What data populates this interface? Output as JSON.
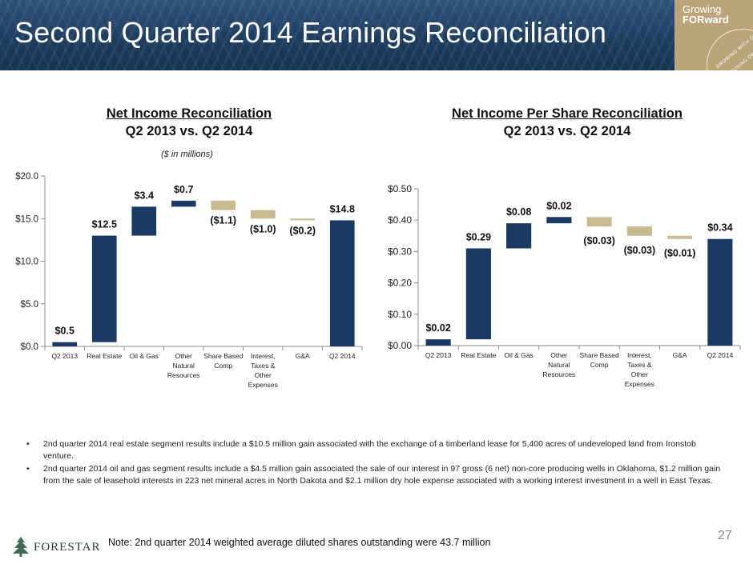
{
  "header": {
    "title": "Second Quarter 2014 Earnings Reconciliation",
    "badge_line1": "Growing",
    "badge_line2": "FORward",
    "badge_ring_text1": "GROWING WITH DISCIPLINE",
    "badge_ring_text2": "FOCUSING ON RETURNS"
  },
  "left_chart": {
    "title_line1": "Net Income Reconciliation",
    "title_line2": "Q2 2013 vs. Q2 2014",
    "subtitle": "($ in millions)"
  },
  "right_chart": {
    "title_line1": "Net Income Per Share Reconciliation",
    "title_line2": "Q2 2013 vs. Q2 2014"
  },
  "chart_data": [
    {
      "type": "bar",
      "subtype": "waterfall",
      "title": "Net Income Reconciliation Q2 2013 vs. Q2 2014",
      "subtitle": "($ in millions)",
      "categories": [
        [
          "Q2 2013"
        ],
        [
          "Real Estate"
        ],
        [
          "Oil & Gas"
        ],
        [
          "Other",
          "Natural",
          "Resources"
        ],
        [
          "Share Based",
          "Comp"
        ],
        [
          "Interest,",
          "Taxes &",
          "Other",
          "Expenses"
        ],
        [
          "G&A"
        ],
        [
          "Q2 2014"
        ]
      ],
      "steps": [
        {
          "kind": "total",
          "value": 0.5,
          "label": "$0.5"
        },
        {
          "kind": "increase",
          "value": 12.5,
          "label": "$12.5"
        },
        {
          "kind": "increase",
          "value": 3.4,
          "label": "$3.4"
        },
        {
          "kind": "increase",
          "value": 0.7,
          "label": "$0.7"
        },
        {
          "kind": "decrease",
          "value": -1.1,
          "label": "($1.1)"
        },
        {
          "kind": "decrease",
          "value": -1.0,
          "label": "($1.0)"
        },
        {
          "kind": "decrease",
          "value": -0.2,
          "label": "($0.2)"
        },
        {
          "kind": "total",
          "value": 14.8,
          "label": "$14.8"
        }
      ],
      "yticks": [
        "$0.0",
        "$5.0",
        "$10.0",
        "$15.0",
        "$20.0"
      ],
      "ylim": [
        0,
        20
      ],
      "colors": {
        "positive": "#1b3a63",
        "negative": "#c9bb91"
      },
      "grid": false,
      "legend": "none"
    },
    {
      "type": "bar",
      "subtype": "waterfall",
      "title": "Net Income Per Share Reconciliation Q2 2013 vs. Q2 2014",
      "categories": [
        [
          "Q2 2013"
        ],
        [
          "Real Estate"
        ],
        [
          "Oil & Gas"
        ],
        [
          "Other",
          "Natural",
          "Resources"
        ],
        [
          "Share Based",
          "Comp"
        ],
        [
          "Interest,",
          "Taxes &",
          "Other",
          "Expenses"
        ],
        [
          "G&A"
        ],
        [
          "Q2 2014"
        ]
      ],
      "steps": [
        {
          "kind": "total",
          "value": 0.02,
          "label": "$0.02"
        },
        {
          "kind": "increase",
          "value": 0.29,
          "label": "$0.29"
        },
        {
          "kind": "increase",
          "value": 0.08,
          "label": "$0.08"
        },
        {
          "kind": "increase",
          "value": 0.02,
          "label": "$0.02"
        },
        {
          "kind": "decrease",
          "value": -0.03,
          "label": "($0.03)"
        },
        {
          "kind": "decrease",
          "value": -0.03,
          "label": "($0.03)"
        },
        {
          "kind": "decrease",
          "value": -0.01,
          "label": "($0.01)"
        },
        {
          "kind": "total",
          "value": 0.34,
          "label": "$0.34"
        }
      ],
      "yticks": [
        "$0.00",
        "$0.10",
        "$0.20",
        "$0.30",
        "$0.40",
        "$0.50"
      ],
      "ylim": [
        0,
        0.5
      ],
      "colors": {
        "positive": "#1b3a63",
        "negative": "#c9bb91"
      },
      "grid": false,
      "legend": "none"
    }
  ],
  "bullets": [
    "2nd quarter 2014 real estate segment results include a $10.5 million gain associated with the exchange of a timberland lease for 5,400 acres of undeveloped land from Ironstob venture.",
    "2nd quarter 2014 oil and gas segment results include a $4.5 million gain associated the sale of our interest in 97 gross (6 net) non-core producing wells in Oklahoma, $1.2 million gain from the sale of leasehold interests in 223 net mineral acres in North Dakota and $2.1 million dry hole expense associated with a working interest investment in a well in East Texas."
  ],
  "bullet_symbol": "•",
  "note": "Note: 2nd quarter 2014 weighted average diluted shares outstanding were 43.7 million",
  "page_number": "27",
  "logo_text": "FORESTAR"
}
